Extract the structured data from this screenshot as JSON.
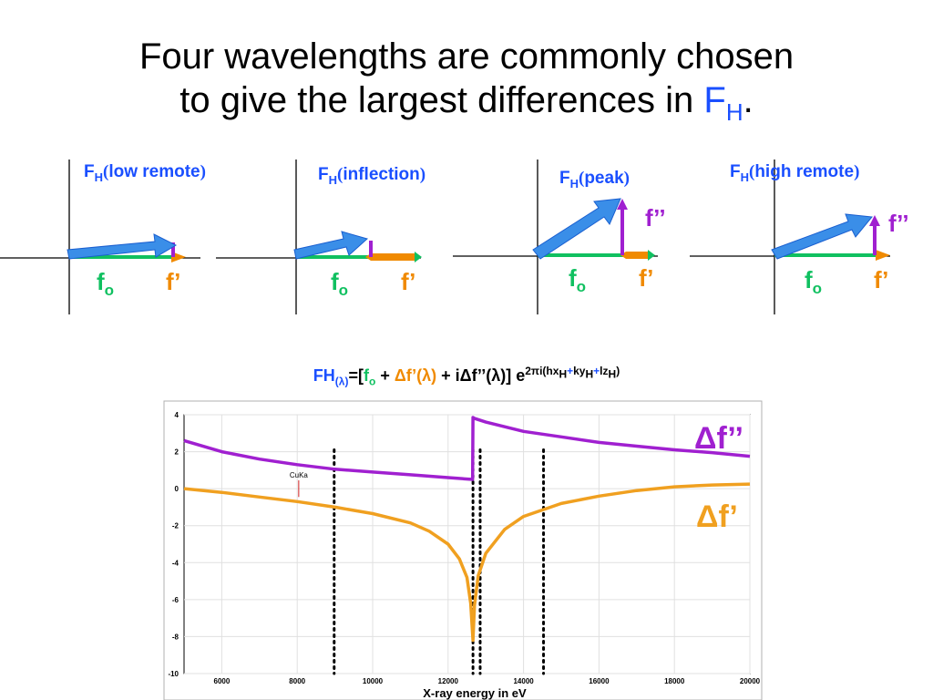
{
  "title": {
    "line1": "Four wavelengths are commonly chosen",
    "line2": "to give the largest differences in ",
    "fh_main": "F",
    "fh_sub": "H",
    "period": "."
  },
  "diagrams": [
    {
      "label_main": "F",
      "label_sub": "H",
      "label_text": "low remote",
      "fo_main": "f",
      "fo_sub": "o",
      "fprime": "f’",
      "fdprime": ""
    },
    {
      "label_main": "F",
      "label_sub": "H",
      "label_text": "inflection",
      "fo_main": "f",
      "fo_sub": "o",
      "fprime": "f’",
      "fdprime": ""
    },
    {
      "label_main": "F",
      "label_sub": "H",
      "label_text": "peak",
      "fo_main": "f",
      "fo_sub": "o",
      "fprime": "f’",
      "fdprime": "f’’"
    },
    {
      "label_main": "F",
      "label_sub": "H",
      "label_text": "high remote",
      "fo_main": "f",
      "fo_sub": "o",
      "fprime": "f’",
      "fdprime": "f’’"
    }
  ],
  "equation": {
    "fh": "FH",
    "fh_sub": "(λ)",
    "eq_open": "=[",
    "fo": "f",
    "fo_sub": "o",
    "plus1": " + ",
    "dfp": "Δf’(λ)",
    "plus2": " + i",
    "dfpp": "Δf’’(λ)",
    "close": "] e",
    "exp_pre": "2πi(hx",
    "exp_h1": "H",
    "exp_plus1": "+",
    "exp_ky": "ky",
    "exp_h2": "H",
    "exp_plus2": "+",
    "exp_lz": "lz",
    "exp_h3": "H",
    "exp_close": ")"
  },
  "colors": {
    "purple": "#a020d0",
    "orange": "#f0a020",
    "blue": "#3a8ee8",
    "green": "#10c060"
  },
  "chart_data": {
    "type": "line",
    "xlabel": "X-ray energy in eV",
    "ylabel": "",
    "xlim": [
      5000,
      20000
    ],
    "ylim": [
      -10,
      4
    ],
    "xticks": [
      6000,
      8000,
      10000,
      12000,
      14000,
      16000,
      18000,
      20000
    ],
    "yticks": [
      4,
      2,
      0,
      -2,
      -4,
      -6,
      -8,
      -10
    ],
    "series": [
      {
        "name": "Δf’’",
        "color": "#a020d0",
        "x": [
          5000,
          6000,
          7000,
          8000,
          9000,
          10000,
          11000,
          12000,
          12650,
          12660,
          12700,
          13000,
          14000,
          15000,
          16000,
          17000,
          18000,
          19000,
          20000
        ],
        "y": [
          2.6,
          2.0,
          1.6,
          1.3,
          1.05,
          0.9,
          0.75,
          0.6,
          0.5,
          3.85,
          3.8,
          3.6,
          3.1,
          2.8,
          2.5,
          2.3,
          2.1,
          1.95,
          1.75
        ]
      },
      {
        "name": "Δf’",
        "color": "#f0a020",
        "x": [
          5000,
          6000,
          7000,
          8000,
          9000,
          10000,
          11000,
          11500,
          12000,
          12300,
          12500,
          12600,
          12660,
          12700,
          12800,
          13000,
          13500,
          14000,
          15000,
          16000,
          17000,
          18000,
          19000,
          20000
        ],
        "y": [
          0,
          -0.2,
          -0.45,
          -0.7,
          -1.0,
          -1.35,
          -1.85,
          -2.3,
          -3.0,
          -3.8,
          -4.8,
          -6.2,
          -8.2,
          -6.3,
          -4.7,
          -3.5,
          -2.2,
          -1.5,
          -0.8,
          -0.4,
          -0.1,
          0.1,
          0.2,
          0.25
        ]
      }
    ],
    "annotations": [
      {
        "text": "CuKa",
        "x": 8040
      },
      {
        "text": "Δf’’"
      },
      {
        "text": "Δf’"
      }
    ],
    "dotted_lines_x": [
      8980,
      12660,
      12850,
      14530
    ]
  }
}
